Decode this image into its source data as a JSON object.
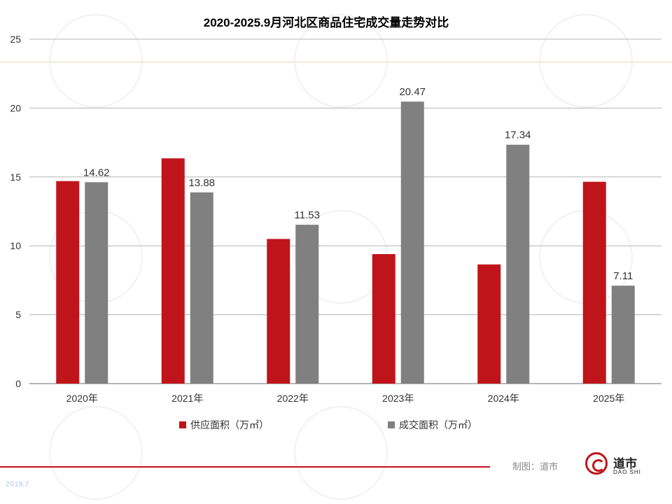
{
  "chart_data": {
    "type": "bar",
    "title": "2020-2025.9月河北区商品住宅成交量走势对比",
    "categories": [
      "2020年",
      "2021年",
      "2022年",
      "2023年",
      "2024年",
      "2025年"
    ],
    "series": [
      {
        "name": "供应面积（万㎡）",
        "color": "#c0141b",
        "values": [
          14.7,
          16.35,
          10.5,
          9.4,
          8.65,
          14.65
        ],
        "labels_shown": false
      },
      {
        "name": "成交面积（万㎡）",
        "color": "#808080",
        "values": [
          14.62,
          13.88,
          11.53,
          20.47,
          17.34,
          7.11
        ],
        "labels_shown": true
      }
    ],
    "ylim": [
      0,
      25
    ],
    "yticks": [
      0,
      5,
      10,
      15,
      20,
      25
    ],
    "grid": true,
    "legend": "bottom",
    "xlabel": "",
    "ylabel": ""
  },
  "footer": {
    "credit": "制图：道市",
    "brand": "道市",
    "brand_sub": "DAO SHI",
    "stamp": "2019.7"
  }
}
